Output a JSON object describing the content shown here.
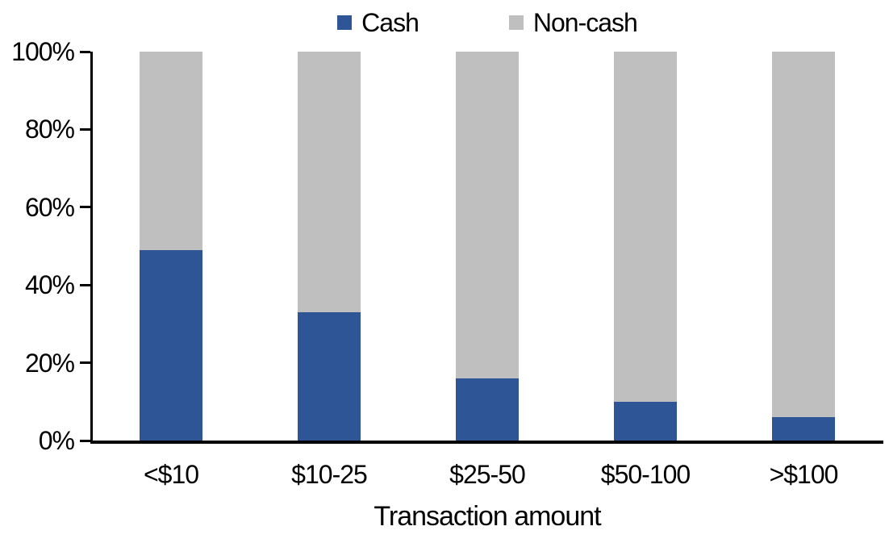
{
  "chart_data": {
    "type": "bar",
    "stacked": true,
    "orientation": "vertical",
    "title": "",
    "xlabel": "Transaction amount",
    "ylabel": "",
    "categories": [
      "<$10",
      "$10-25",
      "$25-50",
      "$50-100",
      ">$100"
    ],
    "series": [
      {
        "name": "Cash",
        "color": "#2E5596",
        "values": [
          49,
          33,
          16,
          10,
          6
        ]
      },
      {
        "name": "Non-cash",
        "color": "#BFBFBF",
        "values": [
          51,
          67,
          84,
          90,
          94
        ]
      }
    ],
    "ylim": [
      0,
      100
    ],
    "ytick_values": [
      0,
      20,
      40,
      60,
      80,
      100
    ],
    "ytick_labels": [
      "0%",
      "20%",
      "40%",
      "60%",
      "80%",
      "100%"
    ],
    "legend_position": "top-center",
    "grid": false,
    "axis_color": "#000000",
    "background_color": "#FFFFFF"
  }
}
